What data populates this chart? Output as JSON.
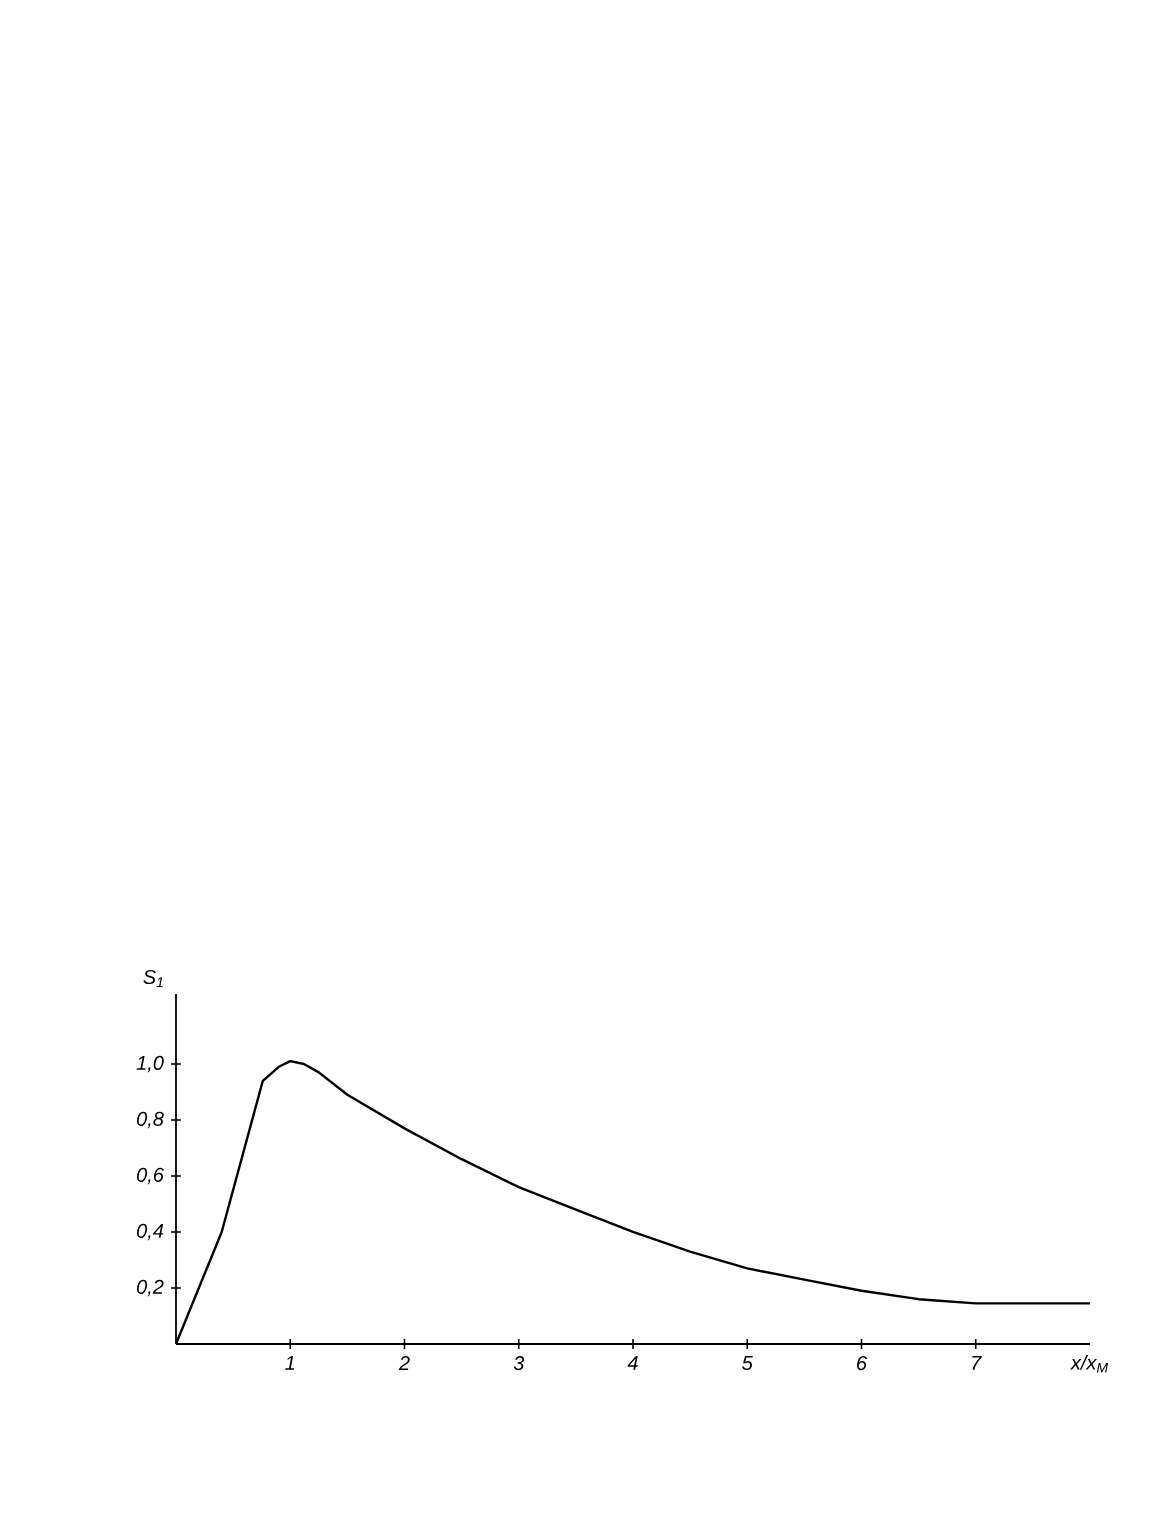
{
  "chart_data": {
    "type": "line",
    "xlabel": "x/x$_{M}$",
    "ylabel": "S$_{1}$",
    "x": [
      0,
      0.4,
      0.76,
      0.9,
      1.0,
      1.12,
      1.25,
      1.5,
      2.0,
      2.5,
      3.0,
      3.5,
      4.0,
      4.5,
      5.0,
      5.5,
      6.0,
      6.5,
      7.0,
      7.5,
      8.0
    ],
    "values": [
      0,
      0.4,
      0.94,
      0.99,
      1.01,
      1.0,
      0.97,
      0.89,
      0.77,
      0.66,
      0.56,
      0.48,
      0.4,
      0.33,
      0.27,
      0.23,
      0.19,
      0.16,
      0.145,
      0.145,
      0.145
    ],
    "color": "#000000",
    "marker": "none",
    "line_style": "solid",
    "grid": false,
    "xlim": [
      0,
      8
    ],
    "ylim": [
      0,
      1.25
    ],
    "xticks": [
      1,
      2,
      3,
      4,
      5,
      6,
      7
    ],
    "yticks": [
      {
        "value": 0.2,
        "label": "0,2"
      },
      {
        "value": 0.4,
        "label": "0,4"
      },
      {
        "value": 0.6,
        "label": "0,6"
      },
      {
        "value": 0.8,
        "label": "0,8"
      },
      {
        "value": 1.0,
        "label": "1,0"
      }
    ]
  }
}
